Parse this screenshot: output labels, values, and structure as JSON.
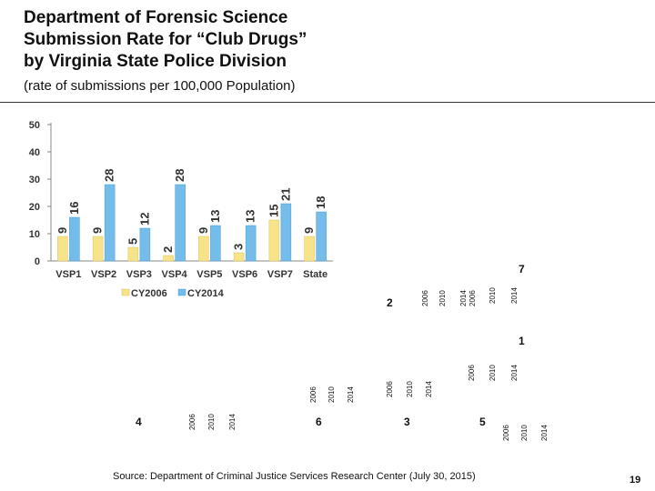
{
  "title_lines": [
    "Department of Forensic Science",
    "Submission Rate for “Club Drugs”",
    "by Virginia State Police Division"
  ],
  "subtitle": "(rate of submissions per 100,000 Population)",
  "chart_data": {
    "type": "bar",
    "categories": [
      "VSP1",
      "VSP2",
      "VSP3",
      "VSP4",
      "VSP5",
      "VSP6",
      "VSP7",
      "State"
    ],
    "series": [
      {
        "name": "CY2006",
        "values": [
          9,
          9,
          5,
          2,
          9,
          3,
          15,
          9
        ],
        "color": "#f7e38a"
      },
      {
        "name": "CY2014",
        "values": [
          16,
          28,
          12,
          28,
          13,
          13,
          21,
          18
        ],
        "color": "#74bcea"
      }
    ],
    "ylim": [
      0,
      50
    ],
    "yticks": [
      0,
      10,
      20,
      30,
      40,
      50
    ],
    "legend": "bottom",
    "grid": false
  },
  "map_labels": [
    {
      "id": "7",
      "text": "7"
    },
    {
      "id": "2",
      "text": "2"
    },
    {
      "id": "1",
      "text": "1"
    },
    {
      "id": "4",
      "text": "4"
    },
    {
      "id": "6",
      "text": "6"
    },
    {
      "id": "3",
      "text": "3"
    },
    {
      "id": "5",
      "text": "5"
    }
  ],
  "map_years": [
    "2006",
    "2010",
    "2014"
  ],
  "source": "Source:  Department of Criminal Justice Services Research Center (July 30, 2015)",
  "page_number": "19"
}
